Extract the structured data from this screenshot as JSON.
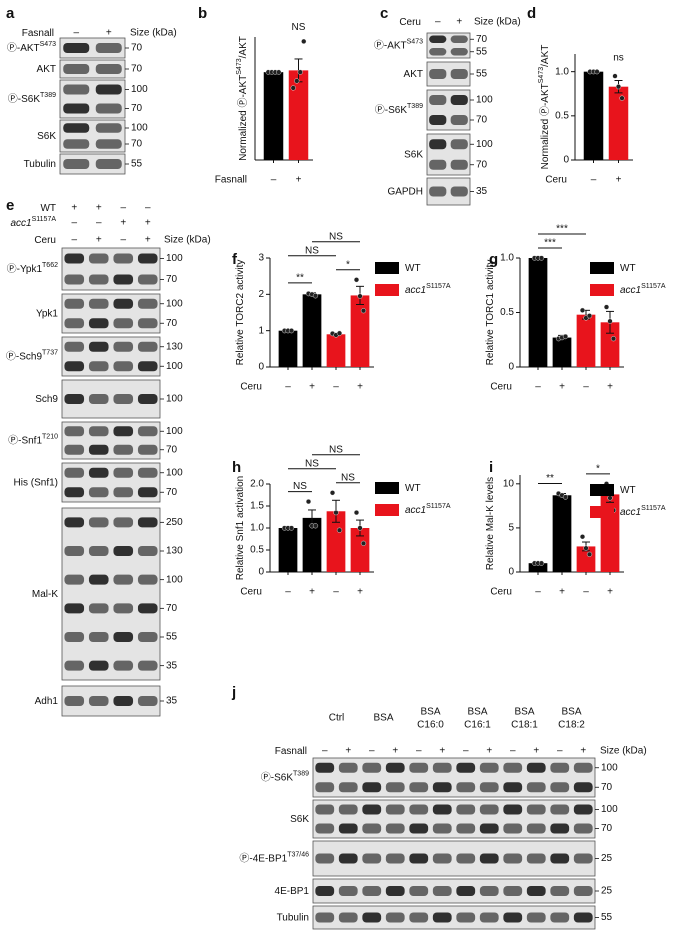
{
  "chart_data": [
    {
      "type": "bar",
      "panel_letter": "b",
      "title": "NS",
      "ylabel": [
        "Normalized Ⓟ-AKT",
        "S473",
        "/AKT"
      ],
      "xlabel": "Fasnall",
      "categories": [
        "–",
        "+"
      ],
      "values": [
        1.0,
        1.02
      ],
      "errors": [
        0,
        0.13
      ],
      "colors": [
        "#000000",
        "#e8141c"
      ],
      "points": [
        [
          1,
          1,
          1,
          1
        ],
        [
          0.82,
          0.9,
          1.0,
          1.35
        ]
      ],
      "ylim": [
        0,
        1.4
      ]
    },
    {
      "type": "bar",
      "panel_letter": "d",
      "title": "ns",
      "ylabel": [
        "Normalized Ⓟ-AKT",
        "S473",
        "/AKT"
      ],
      "xlabel": "Ceru",
      "categories": [
        "–",
        "+"
      ],
      "values": [
        1.0,
        0.83
      ],
      "errors": [
        0,
        0.07
      ],
      "colors": [
        "#000000",
        "#e8141c"
      ],
      "points": [
        [
          1,
          1,
          1
        ],
        [
          0.95,
          0.83,
          0.7
        ]
      ],
      "ylim": [
        0,
        1.2
      ],
      "yticks": [
        0,
        0.5,
        {
          "value": 1,
          "label": "1.0"
        }
      ]
    },
    {
      "type": "bar",
      "panel_letter": "f",
      "ylabel": [
        "Relative TORC2 activity"
      ],
      "xlabel": "Ceru",
      "categories": [
        "–",
        "+",
        "–",
        "+"
      ],
      "values": [
        1.0,
        2.0,
        0.9,
        1.97
      ],
      "errors": [
        0,
        0.04,
        0.03,
        0.25
      ],
      "colors": [
        "#000000",
        "#000000",
        "#e8141c",
        "#e8141c"
      ],
      "points": [
        [
          1,
          1,
          1
        ],
        [
          2.02,
          2.0,
          1.96
        ],
        [
          0.92,
          0.88,
          0.93
        ],
        [
          2.4,
          1.95,
          1.55
        ]
      ],
      "ylim": [
        0,
        3
      ],
      "yticks": [
        0,
        1,
        2,
        3
      ],
      "legend": [
        {
          "name": "WT",
          "color": "#000000"
        },
        {
          "name": "acc1",
          "sup": "S1157A",
          "color": "#e8141c"
        }
      ],
      "brackets": [
        {
          "from": 0,
          "to": 1,
          "label": "**"
        },
        {
          "from": 2,
          "to": 3,
          "label": "*"
        },
        {
          "from": 0,
          "to": 2,
          "label": "NS"
        },
        {
          "from": 1,
          "to": 3,
          "label": "NS"
        }
      ]
    },
    {
      "type": "bar",
      "panel_letter": "g",
      "ylabel": [
        "Relative TORC1 activity"
      ],
      "xlabel": "Ceru",
      "categories": [
        "–",
        "+",
        "–",
        "+"
      ],
      "values": [
        1.0,
        0.27,
        0.48,
        0.41
      ],
      "errors": [
        0,
        0.02,
        0.04,
        0.1
      ],
      "colors": [
        "#000000",
        "#000000",
        "#e8141c",
        "#e8141c"
      ],
      "points": [
        [
          1,
          1,
          1
        ],
        [
          0.26,
          0.27,
          0.28
        ],
        [
          0.52,
          0.45,
          0.47
        ],
        [
          0.55,
          0.42,
          0.26
        ]
      ],
      "ylim": [
        0,
        1
      ],
      "yticks": [
        0,
        0.5,
        {
          "value": 1,
          "label": "1.0"
        }
      ],
      "legend": [
        {
          "name": "WT",
          "color": "#000000"
        },
        {
          "name": "acc1",
          "sup": "S1157A",
          "color": "#e8141c"
        }
      ],
      "brackets": [
        {
          "from": 0,
          "to": 1,
          "label": "***"
        },
        {
          "from": 0,
          "to": 2,
          "label": "***"
        }
      ]
    },
    {
      "type": "bar",
      "panel_letter": "h",
      "ylabel": [
        "Relative Snf1 activation"
      ],
      "xlabel": "Ceru",
      "categories": [
        "–",
        "+",
        "–",
        "+"
      ],
      "values": [
        1.0,
        1.23,
        1.38,
        1.0
      ],
      "errors": [
        0,
        0.18,
        0.25,
        0.18
      ],
      "colors": [
        "#000000",
        "#000000",
        "#e8141c",
        "#e8141c"
      ],
      "points": [
        [
          1,
          1,
          1
        ],
        [
          1.6,
          1.05,
          1.05
        ],
        [
          1.8,
          1.35,
          0.95
        ],
        [
          1.35,
          1.0,
          0.65
        ]
      ],
      "ylim": [
        0,
        2
      ],
      "yticks": [
        0,
        0.5,
        {
          "value": 1,
          "label": "1.0"
        },
        1.5,
        {
          "value": 2,
          "label": "2.0"
        }
      ],
      "legend": [
        {
          "name": "WT",
          "color": "#000000"
        },
        {
          "name": "acc1",
          "sup": "S1157A",
          "color": "#e8141c"
        }
      ],
      "brackets": [
        {
          "from": 0,
          "to": 1,
          "label": "NS"
        },
        {
          "from": 2,
          "to": 3,
          "label": "NS"
        },
        {
          "from": 0,
          "to": 2,
          "label": "NS"
        },
        {
          "from": 1,
          "to": 3,
          "label": "NS"
        }
      ]
    },
    {
      "type": "bar",
      "panel_letter": "i",
      "ylabel": [
        "Relative Mal-K levels"
      ],
      "xlabel": "Ceru",
      "categories": [
        "–",
        "+",
        "–",
        "+"
      ],
      "values": [
        1.0,
        8.7,
        2.9,
        8.8
      ],
      "errors": [
        0,
        0.2,
        0.5,
        0.9
      ],
      "colors": [
        "#000000",
        "#000000",
        "#e8141c",
        "#e8141c"
      ],
      "points": [
        [
          1,
          1,
          1
        ],
        [
          8.9,
          8.7,
          8.5
        ],
        [
          4.0,
          2.7,
          2.0
        ],
        [
          10.0,
          8.4,
          7.0
        ]
      ],
      "ylim": [
        0,
        11
      ],
      "yticks": [
        0,
        5,
        10
      ],
      "legend": [
        {
          "name": "WT",
          "color": "#000000"
        },
        {
          "name": "acc1",
          "sup": "S1157A",
          "color": "#e8141c"
        }
      ],
      "brackets": [
        {
          "from": 0,
          "to": 1,
          "label": "**"
        },
        {
          "from": 2,
          "to": 3,
          "label": "*"
        }
      ]
    }
  ],
  "blots": [
    {
      "panel_letter": "a",
      "size_label": "Size (kDa)",
      "header": [
        {
          "label": "Fasnall",
          "marks": [
            "–",
            "+"
          ]
        }
      ],
      "rows": [
        {
          "label": "Ⓟ-AKT",
          "sup": "S473",
          "markers": [
            70
          ]
        },
        {
          "label": "AKT",
          "markers": [
            70
          ]
        },
        {
          "label": "Ⓟ-S6K",
          "sup": "T389",
          "markers": [
            100,
            70
          ]
        },
        {
          "label": "S6K",
          "markers": [
            100,
            70
          ]
        },
        {
          "label": "Tubulin",
          "markers": [
            55
          ]
        }
      ]
    },
    {
      "panel_letter": "c",
      "size_label": "Size (kDa)",
      "header": [
        {
          "label": "Ceru",
          "marks": [
            "–",
            "+"
          ]
        }
      ],
      "rows": [
        {
          "label": "Ⓟ-AKT",
          "sup": "S473",
          "markers": [
            70,
            55
          ]
        },
        {
          "label": "AKT",
          "markers": [
            55
          ]
        },
        {
          "label": "Ⓟ-S6K",
          "sup": "T389",
          "markers": [
            100,
            70
          ]
        },
        {
          "label": "S6K",
          "markers": [
            100,
            70
          ]
        },
        {
          "label": "GAPDH",
          "markers": [
            35
          ]
        }
      ]
    },
    {
      "panel_letter": "e",
      "size_label": "Size (kDa)",
      "header": [
        {
          "label": "WT",
          "marks": [
            "+",
            "+",
            "–",
            "–"
          ]
        },
        {
          "label": "acc1",
          "sup": "S1157A",
          "marks": [
            "–",
            "–",
            "+",
            "+"
          ]
        },
        {
          "label": "Ceru",
          "marks": [
            "–",
            "+",
            "–",
            "+"
          ]
        }
      ],
      "rows": [
        {
          "label": "Ⓟ-Ypk1",
          "sup": "T662",
          "markers": [
            100,
            70
          ]
        },
        {
          "label": "Ypk1",
          "markers": [
            100,
            70
          ]
        },
        {
          "label": "Ⓟ-Sch9",
          "sup": "T737",
          "markers": [
            130,
            100
          ]
        },
        {
          "label": "Sch9",
          "markers": [
            100
          ]
        },
        {
          "label": "Ⓟ-Snf1",
          "sup": "T210",
          "markers": [
            100,
            70
          ]
        },
        {
          "label": "His (Snf1)",
          "markers": [
            100,
            70
          ]
        },
        {
          "label": "Mal-K",
          "markers": [
            250,
            130,
            100,
            70,
            55,
            35
          ]
        },
        {
          "label": "Adh1",
          "markers": [
            35
          ]
        }
      ]
    },
    {
      "panel_letter": "j",
      "size_label": "Size (kDa)",
      "groups": [
        [
          "Ctrl"
        ],
        [
          "BSA"
        ],
        [
          "BSA",
          "C16:0"
        ],
        [
          "BSA",
          "C16:1"
        ],
        [
          "BSA",
          "C18:1"
        ],
        [
          "BSA",
          "C18:2"
        ]
      ],
      "header": [
        {
          "label": "Fasnall",
          "marks": [
            "–",
            "+",
            "–",
            "+",
            "–",
            "+",
            "–",
            "+",
            "–",
            "+",
            "–",
            "+"
          ]
        }
      ],
      "rows": [
        {
          "label": "Ⓟ-S6K",
          "sup": "T389",
          "markers": [
            100,
            70
          ]
        },
        {
          "label": "S6K",
          "markers": [
            100,
            70
          ]
        },
        {
          "label": "Ⓟ-4E-BP1",
          "sup": "T37/46",
          "markers": [
            25
          ]
        },
        {
          "label": "4E-BP1",
          "markers": [
            25
          ]
        },
        {
          "label": "Tubulin",
          "markers": [
            55
          ]
        }
      ]
    }
  ]
}
